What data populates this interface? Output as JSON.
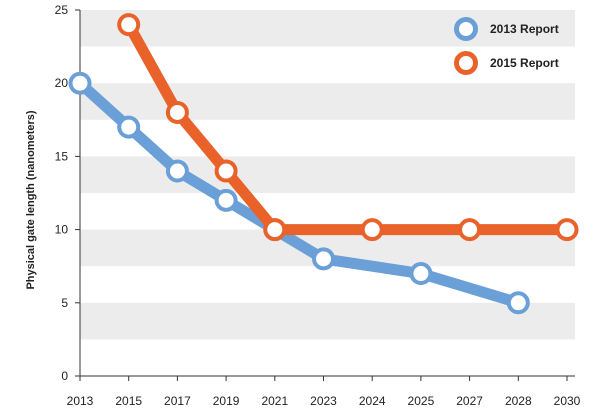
{
  "chart_data": {
    "type": "line",
    "title": "",
    "xlabel": "",
    "ylabel": "Physical gate length (nanometers)",
    "ylim": [
      0,
      25
    ],
    "yticks": [
      0,
      5,
      10,
      15,
      20,
      25
    ],
    "x_categories": [
      "2013",
      "2015",
      "2017",
      "2019",
      "2021",
      "2023",
      "2024",
      "2025",
      "2027",
      "2028",
      "2030"
    ],
    "grid": "horizontal alternating bands",
    "legend_position": "top-right",
    "series": [
      {
        "name": "2013 Report",
        "color": "#6a9fd8",
        "points": [
          {
            "x": "2013",
            "y": 20
          },
          {
            "x": "2015",
            "y": 17
          },
          {
            "x": "2017",
            "y": 14
          },
          {
            "x": "2019",
            "y": 12
          },
          {
            "x": "2021",
            "y": 10
          },
          {
            "x": "2023",
            "y": 8
          },
          {
            "x": "2025",
            "y": 7
          },
          {
            "x": "2028",
            "y": 5
          }
        ]
      },
      {
        "name": "2015 Report",
        "color": "#e8622a",
        "points": [
          {
            "x": "2015",
            "y": 24
          },
          {
            "x": "2017",
            "y": 18
          },
          {
            "x": "2019",
            "y": 14
          },
          {
            "x": "2021",
            "y": 10
          },
          {
            "x": "2024",
            "y": 10
          },
          {
            "x": "2027",
            "y": 10
          },
          {
            "x": "2030",
            "y": 10
          }
        ]
      }
    ]
  }
}
